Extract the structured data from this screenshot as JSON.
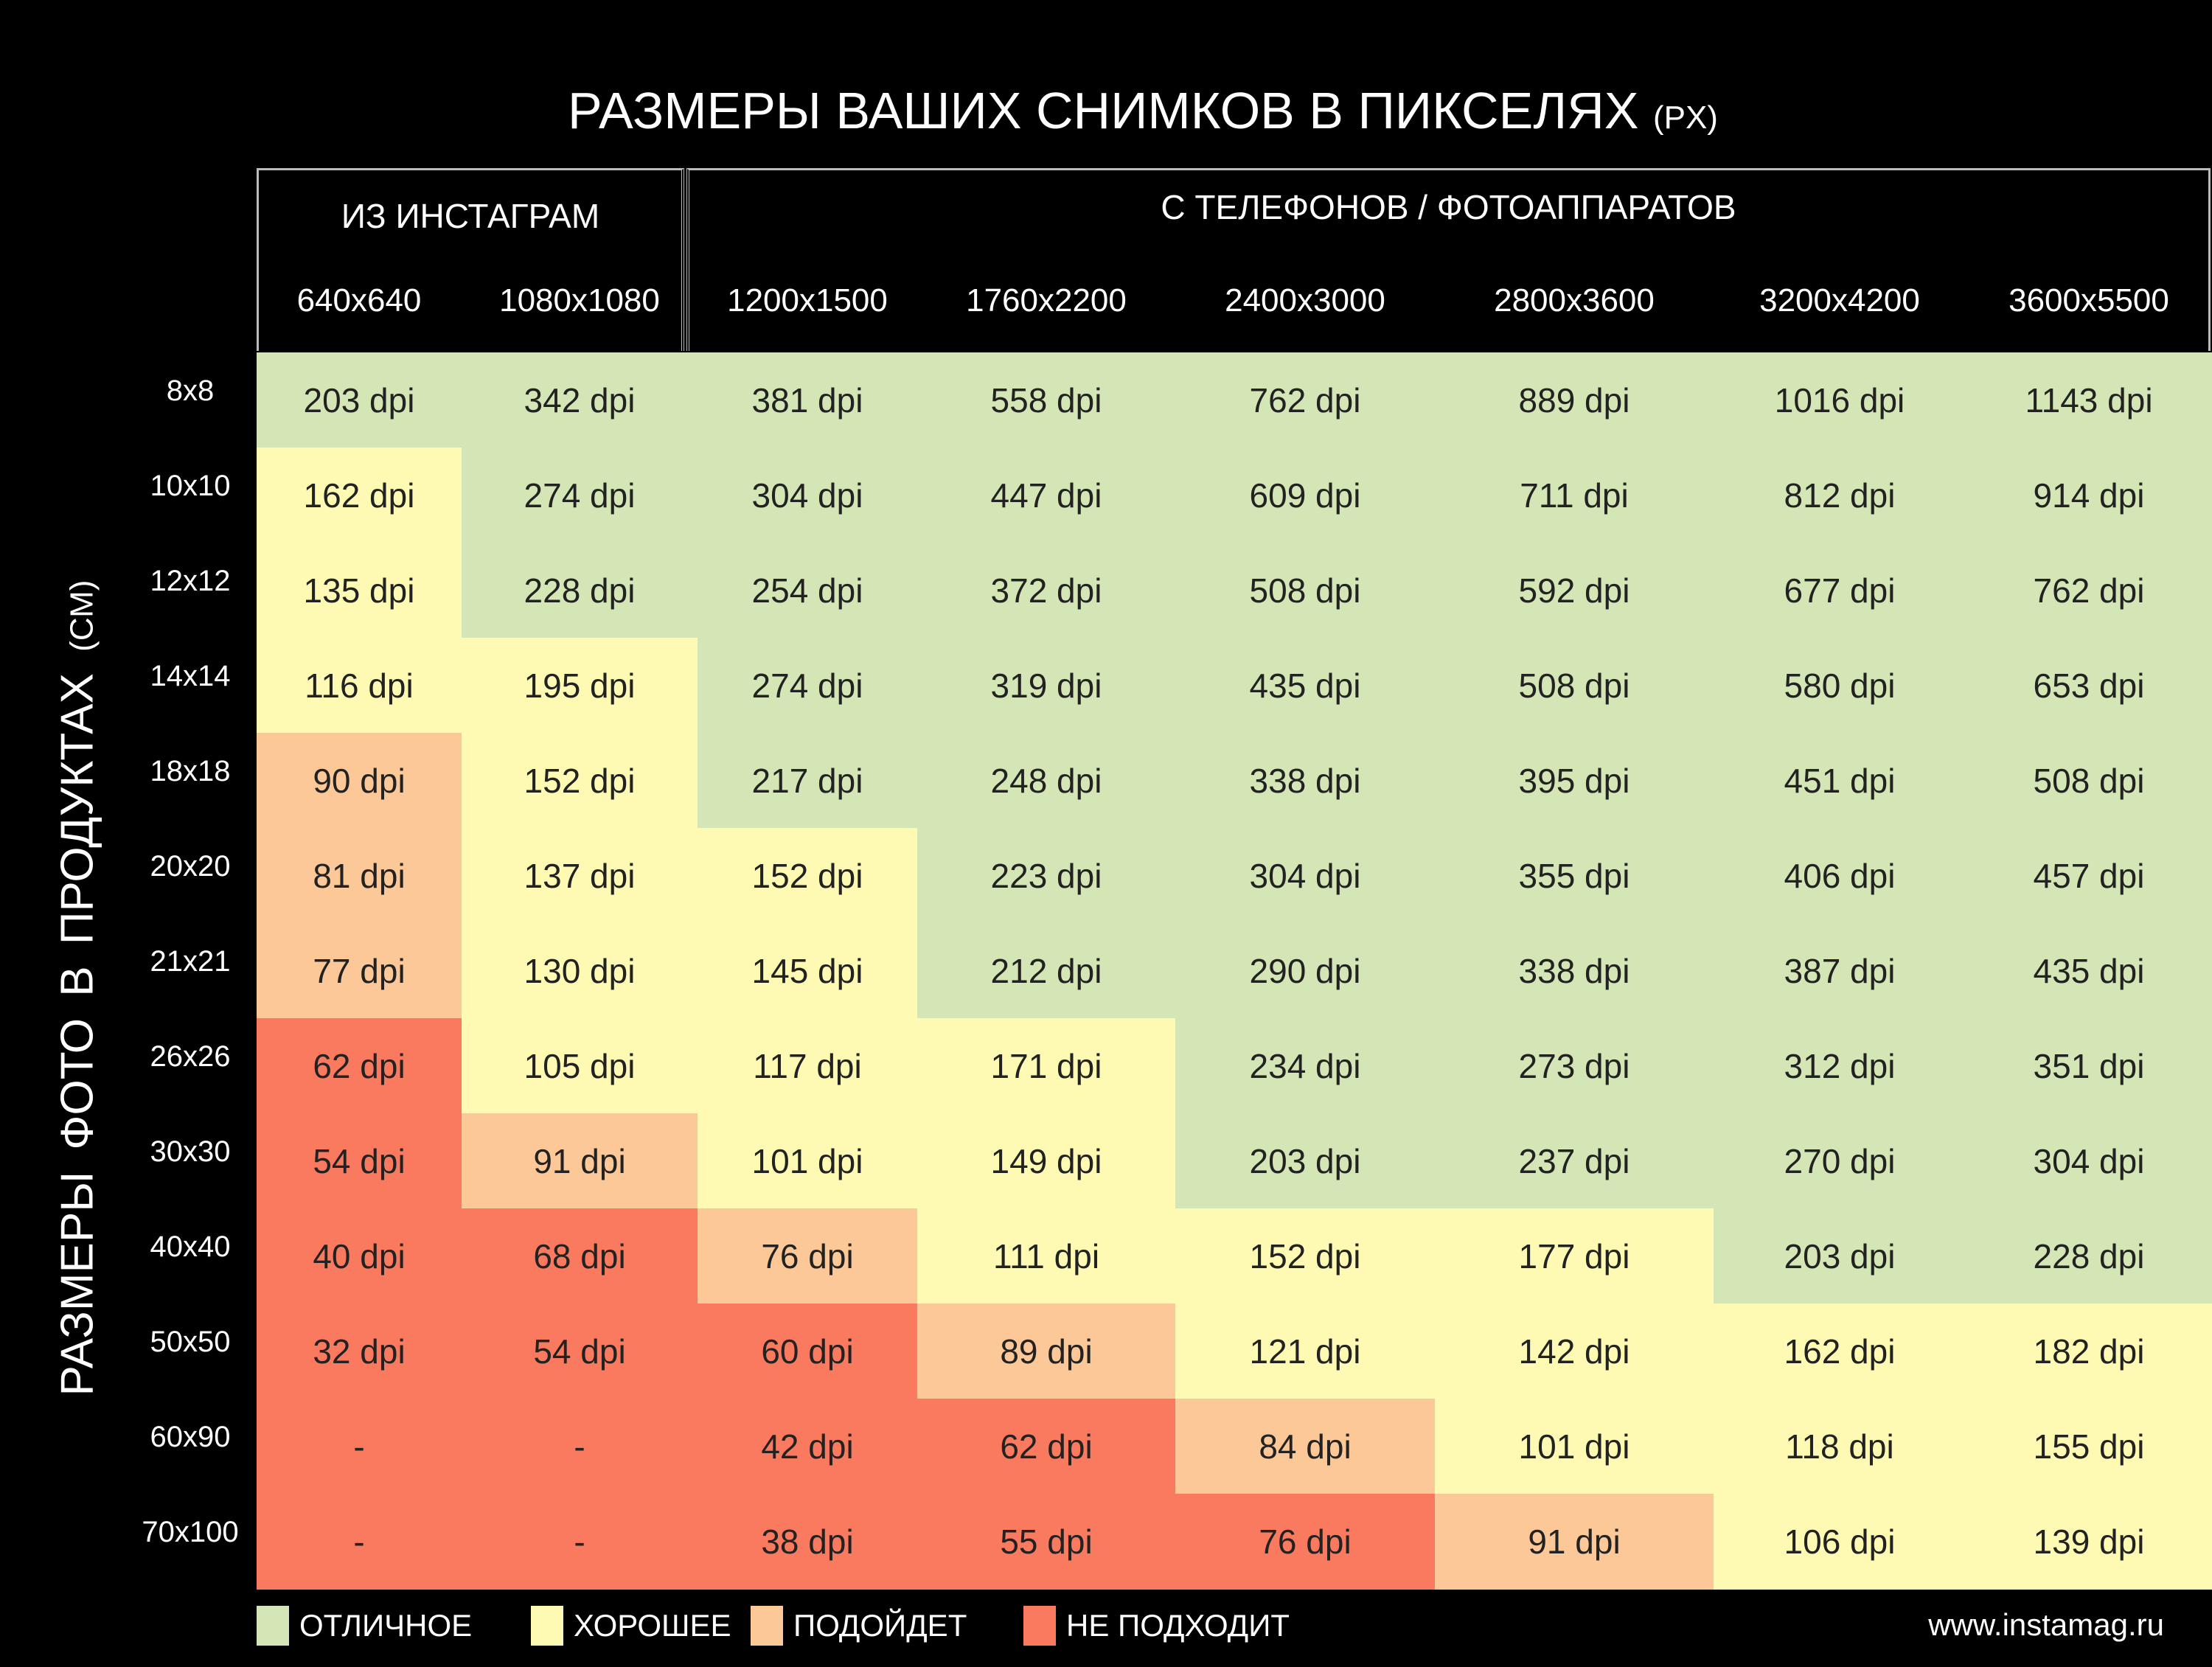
{
  "title": "РАЗМЕРЫ ВАШИХ СНИМКОВ В ПИКСЕЛЯХ",
  "title_unit": "(PX)",
  "y_title": "РАЗМЕРЫ ФОТО В ПРОДУКТАХ",
  "y_title_unit": "(СМ)",
  "url": "www.instamag.ru",
  "groups": [
    {
      "label": "ИЗ ИНСТАГРАМ"
    },
    {
      "label": "С ТЕЛЕФОНОВ / ФОТОАППАРАТОВ"
    }
  ],
  "colors": {
    "excellent": "#d4e6b5",
    "good": "#fefab3",
    "ok": "#fdc898",
    "bad": "#f97a5e"
  },
  "legend": [
    {
      "key": "excellent",
      "label": "ОТЛИЧНОЕ"
    },
    {
      "key": "good",
      "label": "ХОРОШЕЕ"
    },
    {
      "key": "ok",
      "label": "ПОДОЙДЕТ"
    },
    {
      "key": "bad",
      "label": "НЕ ПОДХОДИТ"
    }
  ],
  "chart_data": {
    "type": "table",
    "columns": [
      "640x640",
      "1080x1080",
      "1200x1500",
      "1760x2200",
      "2400x3000",
      "2800x3600",
      "3200x4200",
      "3600x5500"
    ],
    "rows": [
      "8x8",
      "10x10",
      "12x12",
      "14x14",
      "18x18",
      "20x20",
      "21x21",
      "26x26",
      "30x30",
      "40x40",
      "50x50",
      "60x90",
      "70x100"
    ],
    "values": [
      [
        "203 dpi",
        "342 dpi",
        "381 dpi",
        "558 dpi",
        "762 dpi",
        "889 dpi",
        "1016 dpi",
        "1143 dpi"
      ],
      [
        "162 dpi",
        "274 dpi",
        "304 dpi",
        "447 dpi",
        "609 dpi",
        "711 dpi",
        "812 dpi",
        "914 dpi"
      ],
      [
        "135 dpi",
        "228 dpi",
        "254 dpi",
        "372 dpi",
        "508 dpi",
        "592 dpi",
        "677 dpi",
        "762 dpi"
      ],
      [
        "116 dpi",
        "195 dpi",
        "274 dpi",
        "319 dpi",
        "435 dpi",
        "508 dpi",
        "580 dpi",
        "653 dpi"
      ],
      [
        "90 dpi",
        "152 dpi",
        "217 dpi",
        "248 dpi",
        "338 dpi",
        "395 dpi",
        "451 dpi",
        "508 dpi"
      ],
      [
        "81 dpi",
        "137 dpi",
        "152 dpi",
        "223 dpi",
        "304 dpi",
        "355 dpi",
        "406 dpi",
        "457 dpi"
      ],
      [
        "77 dpi",
        "130 dpi",
        "145 dpi",
        "212 dpi",
        "290 dpi",
        "338 dpi",
        "387 dpi",
        "435 dpi"
      ],
      [
        "62 dpi",
        "105 dpi",
        "117 dpi",
        "171 dpi",
        "234 dpi",
        "273 dpi",
        "312 dpi",
        "351 dpi"
      ],
      [
        "54 dpi",
        "91 dpi",
        "101 dpi",
        "149 dpi",
        "203 dpi",
        "237 dpi",
        "270 dpi",
        "304 dpi"
      ],
      [
        "40 dpi",
        "68 dpi",
        "76 dpi",
        "111 dpi",
        "152 dpi",
        "177 dpi",
        "203 dpi",
        "228 dpi"
      ],
      [
        "32 dpi",
        "54 dpi",
        "60 dpi",
        "89 dpi",
        "121 dpi",
        "142 dpi",
        "162 dpi",
        "182 dpi"
      ],
      [
        "-",
        "-",
        "42 dpi",
        "62 dpi",
        "84 dpi",
        "101 dpi",
        "118 dpi",
        "155 dpi"
      ],
      [
        "-",
        "-",
        "38 dpi",
        "55 dpi",
        "76 dpi",
        "91 dpi",
        "106 dpi",
        "139 dpi"
      ]
    ],
    "quality": [
      [
        "excellent",
        "excellent",
        "excellent",
        "excellent",
        "excellent",
        "excellent",
        "excellent",
        "excellent"
      ],
      [
        "good",
        "excellent",
        "excellent",
        "excellent",
        "excellent",
        "excellent",
        "excellent",
        "excellent"
      ],
      [
        "good",
        "excellent",
        "excellent",
        "excellent",
        "excellent",
        "excellent",
        "excellent",
        "excellent"
      ],
      [
        "good",
        "good",
        "excellent",
        "excellent",
        "excellent",
        "excellent",
        "excellent",
        "excellent"
      ],
      [
        "ok",
        "good",
        "excellent",
        "excellent",
        "excellent",
        "excellent",
        "excellent",
        "excellent"
      ],
      [
        "ok",
        "good",
        "good",
        "excellent",
        "excellent",
        "excellent",
        "excellent",
        "excellent"
      ],
      [
        "ok",
        "good",
        "good",
        "excellent",
        "excellent",
        "excellent",
        "excellent",
        "excellent"
      ],
      [
        "bad",
        "good",
        "good",
        "good",
        "excellent",
        "excellent",
        "excellent",
        "excellent"
      ],
      [
        "bad",
        "ok",
        "good",
        "good",
        "excellent",
        "excellent",
        "excellent",
        "excellent"
      ],
      [
        "bad",
        "bad",
        "ok",
        "good",
        "good",
        "good",
        "excellent",
        "excellent"
      ],
      [
        "bad",
        "bad",
        "bad",
        "ok",
        "good",
        "good",
        "good",
        "good"
      ],
      [
        "bad",
        "bad",
        "bad",
        "bad",
        "ok",
        "good",
        "good",
        "good"
      ],
      [
        "bad",
        "bad",
        "bad",
        "bad",
        "bad",
        "ok",
        "good",
        "good"
      ]
    ]
  }
}
